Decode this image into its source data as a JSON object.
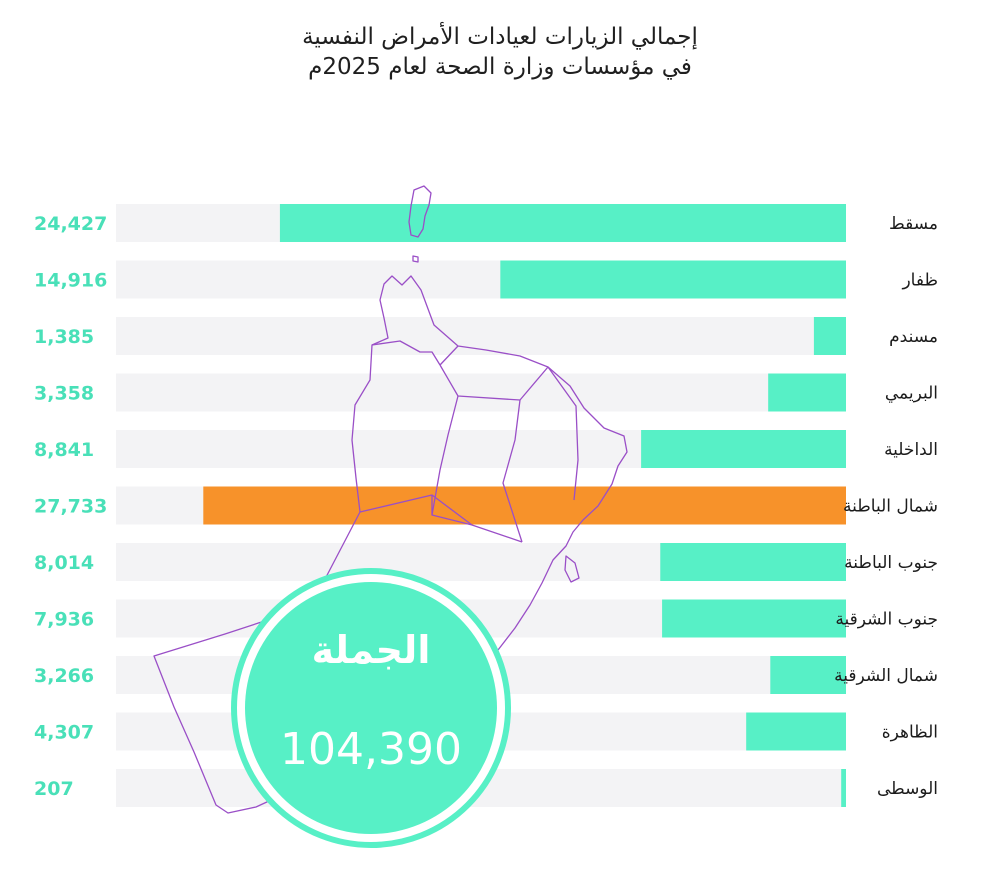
{
  "title_lines": [
    "إجمالي الزيارات لعيادات الأمراض النفسية",
    "في مؤسسات وزارة الصحة لعام 2025م"
  ],
  "colors": {
    "bar": "#57f0c6",
    "highlight": "#f7922a",
    "track": "#f3f3f5",
    "value_text": "#49e0b8",
    "map_outline": "#9a4fc7",
    "total_circle": "#57f0c6"
  },
  "chart_data": {
    "type": "bar",
    "orientation": "horizontal",
    "categories": [
      "مسقط",
      "ظفار",
      "مسندم",
      "البريمي",
      "الداخلية",
      "شمال الباطنة",
      "جنوب الباطنة",
      "جنوب الشرقية",
      "شمال الشرقية",
      "الظاهرة",
      "الوسطى"
    ],
    "values": [
      24427,
      14916,
      1385,
      3358,
      8841,
      27733,
      8014,
      7936,
      3266,
      4307,
      207
    ],
    "value_labels": [
      "24,427",
      "14,916",
      "1,385",
      "3,358",
      "8,841",
      "27,733",
      "8,014",
      "7,936",
      "3,266",
      "4,307",
      "207"
    ],
    "highlight_category": "شمال الباطنة",
    "xlim": [
      0,
      31500
    ],
    "grid": false,
    "legend": "none"
  },
  "total": {
    "label": "الجملة",
    "value": "104,390"
  }
}
